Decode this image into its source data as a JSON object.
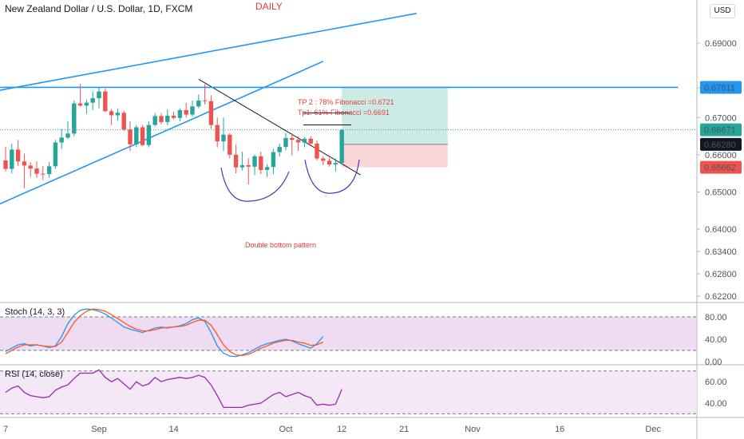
{
  "header": {
    "title": "New Zealand Dollar / U.S. Dollar, 1D, FXCM",
    "timeframe_label": "DAILY",
    "currency_button": "USD"
  },
  "annotations": {
    "tp2": "TP 2 : 78% Fibonacci =0.6721",
    "tp1": "Tp1: 61% Fibonacci =0.6691",
    "pattern": "Double bottom pattern"
  },
  "colors": {
    "up": "#26a69a",
    "down": "#ef5350",
    "trendline": "#2196f3",
    "arc": "#3f3fbf",
    "stoch_k": "#2196f3",
    "stoch_d": "#ff5722",
    "rsi": "#9c27b0",
    "accent_red": "#e53935"
  },
  "chart_data": [
    {
      "type": "candlestick",
      "title": "New Zealand Dollar / U.S. Dollar, 1D, FXCM",
      "y_ticks": [
        0.622,
        0.628,
        0.634,
        0.64,
        0.65,
        0.66,
        0.67,
        0.678,
        0.69
      ],
      "y_tick_labels": [
        "0.62200",
        "0.62800",
        "0.63400",
        "0.64000",
        "0.65000",
        "0.66000",
        "0.67000",
        "0.67811",
        "0.69000"
      ],
      "x_ticks": [
        {
          "bar": 0,
          "label": "7"
        },
        {
          "bar": 15,
          "label": "Sep"
        },
        {
          "bar": 27,
          "label": "14"
        },
        {
          "bar": 45,
          "label": "Oct"
        },
        {
          "bar": 54,
          "label": "12"
        },
        {
          "bar": 64,
          "label": "21"
        },
        {
          "bar": 75,
          "label": "Nov"
        },
        {
          "bar": 89,
          "label": "16"
        },
        {
          "bar": 104,
          "label": "Dec"
        }
      ],
      "price_labels": [
        {
          "value": "0.67811",
          "bg": "#2196f3"
        },
        {
          "value": "0.66671",
          "bg": "#26a69a"
        },
        {
          "value": "0.66280",
          "bg": "#131722"
        },
        {
          "value": "0.65662",
          "bg": "#ef5350"
        }
      ],
      "ohlc": [
        [
          0.6585,
          0.6621,
          0.6555,
          0.6562
        ],
        [
          0.6562,
          0.663,
          0.655,
          0.6614
        ],
        [
          0.6614,
          0.664,
          0.657,
          0.6582
        ],
        [
          0.6582,
          0.6603,
          0.651,
          0.6571
        ],
        [
          0.6571,
          0.658,
          0.654,
          0.6563
        ],
        [
          0.6563,
          0.6582,
          0.6538,
          0.6549
        ],
        [
          0.6549,
          0.657,
          0.6532,
          0.6548
        ],
        [
          0.6548,
          0.658,
          0.6538,
          0.6569
        ],
        [
          0.6569,
          0.664,
          0.6562,
          0.6633
        ],
        [
          0.6633,
          0.667,
          0.6615,
          0.6646
        ],
        [
          0.6646,
          0.669,
          0.6642,
          0.6657
        ],
        [
          0.6657,
          0.6746,
          0.665,
          0.6738
        ],
        [
          0.6738,
          0.679,
          0.673,
          0.6732
        ],
        [
          0.6732,
          0.6748,
          0.671,
          0.674
        ],
        [
          0.674,
          0.677,
          0.672,
          0.6752
        ],
        [
          0.6752,
          0.678,
          0.6725,
          0.677
        ],
        [
          0.677,
          0.6778,
          0.6715,
          0.6717
        ],
        [
          0.6717,
          0.6723,
          0.668,
          0.6706
        ],
        [
          0.6706,
          0.6725,
          0.6692,
          0.6713
        ],
        [
          0.6713,
          0.6718,
          0.6663,
          0.6668
        ],
        [
          0.6668,
          0.669,
          0.661,
          0.6628
        ],
        [
          0.6628,
          0.668,
          0.662,
          0.6674
        ],
        [
          0.6674,
          0.668,
          0.6623,
          0.6626
        ],
        [
          0.6626,
          0.669,
          0.662,
          0.668
        ],
        [
          0.668,
          0.6712,
          0.6676,
          0.6704
        ],
        [
          0.6704,
          0.6712,
          0.6682,
          0.6688
        ],
        [
          0.6688,
          0.6722,
          0.668,
          0.6705
        ],
        [
          0.6705,
          0.6715,
          0.6695,
          0.6699
        ],
        [
          0.6699,
          0.6725,
          0.669,
          0.672
        ],
        [
          0.672,
          0.674,
          0.67,
          0.6708
        ],
        [
          0.6708,
          0.6746,
          0.6702,
          0.673
        ],
        [
          0.673,
          0.6762,
          0.6725,
          0.6746
        ],
        [
          0.6746,
          0.679,
          0.6735,
          0.6744
        ],
        [
          0.6744,
          0.676,
          0.667,
          0.668
        ],
        [
          0.668,
          0.67,
          0.662,
          0.6636
        ],
        [
          0.6636,
          0.67,
          0.661,
          0.6654
        ],
        [
          0.6654,
          0.6658,
          0.659,
          0.66
        ],
        [
          0.66,
          0.6628,
          0.655,
          0.6566
        ],
        [
          0.6566,
          0.6608,
          0.6558,
          0.6572
        ],
        [
          0.6572,
          0.659,
          0.652,
          0.6568
        ],
        [
          0.6568,
          0.66,
          0.6545,
          0.6596
        ],
        [
          0.6596,
          0.6608,
          0.6548,
          0.6559
        ],
        [
          0.6559,
          0.6575,
          0.654,
          0.6567
        ],
        [
          0.6567,
          0.6616,
          0.6548,
          0.6607
        ],
        [
          0.6607,
          0.663,
          0.6595,
          0.6621
        ],
        [
          0.6621,
          0.6658,
          0.6612,
          0.6645
        ],
        [
          0.6645,
          0.6658,
          0.6598,
          0.664
        ],
        [
          0.664,
          0.665,
          0.661,
          0.6633
        ],
        [
          0.6633,
          0.6648,
          0.662,
          0.6643
        ],
        [
          0.6643,
          0.665,
          0.6628,
          0.663
        ],
        [
          0.663,
          0.6638,
          0.6585,
          0.659
        ],
        [
          0.659,
          0.6596,
          0.6572,
          0.6584
        ],
        [
          0.6584,
          0.6592,
          0.6568,
          0.6574
        ],
        [
          0.6574,
          0.659,
          0.6555,
          0.6578
        ],
        [
          0.6578,
          0.6668,
          0.6574,
          0.6667
        ]
      ],
      "trendlines": [
        {
          "name": "upper channel",
          "from": [
            -2,
            0.677
          ],
          "to": [
            66,
            0.698
          ]
        },
        {
          "name": "rising support",
          "from": [
            -2,
            0.646
          ],
          "to": [
            51,
            0.6851
          ]
        },
        {
          "name": "descending resistance",
          "from": [
            31,
            0.6803
          ],
          "to": [
            57,
            0.6546
          ]
        },
        {
          "name": "horizontal level",
          "from": [
            -2,
            0.67811
          ],
          "to": [
            108,
            0.67811
          ]
        }
      ],
      "targets": {
        "entry": 0.6628,
        "stop": 0.65662,
        "tp2": 0.6721,
        "tp1": 0.6691
      },
      "position_box": {
        "from_bar": 54,
        "to_bar": 71,
        "top": 0.67811,
        "entry": 0.6628,
        "bottom": 0.65662
      }
    },
    {
      "type": "line",
      "title": "Stoch (14, 3, 3)",
      "y_ticks": [
        0,
        40,
        80
      ],
      "y_tick_labels": [
        "0.00",
        "40.00",
        "80.00"
      ],
      "bands": [
        20,
        80
      ],
      "series": [
        {
          "name": "%K",
          "values": [
            18,
            24,
            30,
            32,
            28,
            30,
            28,
            25,
            28,
            45,
            68,
            83,
            92,
            94,
            93,
            90,
            85,
            78,
            70,
            62,
            58,
            55,
            52,
            56,
            60,
            62,
            60,
            62,
            64,
            68,
            75,
            78,
            72,
            52,
            28,
            15,
            10,
            9,
            12,
            16,
            22,
            28,
            32,
            35,
            38,
            40,
            37,
            32,
            28,
            24,
            32,
            45
          ]
        },
        {
          "name": "%D",
          "values": [
            14,
            20,
            26,
            30,
            30,
            30,
            28,
            27,
            27,
            35,
            52,
            70,
            82,
            90,
            94,
            93,
            90,
            84,
            77,
            70,
            63,
            58,
            55,
            55,
            57,
            60,
            61,
            62,
            63,
            65,
            70,
            74,
            74,
            65,
            48,
            30,
            18,
            12,
            11,
            13,
            18,
            24,
            28,
            33,
            36,
            38,
            38,
            35,
            33,
            29,
            30,
            35
          ]
        }
      ]
    },
    {
      "type": "line",
      "title": "RSI (14, close)",
      "y_ticks": [
        40,
        60
      ],
      "y_tick_labels": [
        "40.00",
        "60.00"
      ],
      "bands": [
        30,
        70
      ],
      "series": [
        {
          "name": "RSI",
          "values": [
            50,
            54,
            56,
            50,
            47,
            46,
            45,
            46,
            52,
            55,
            57,
            63,
            68,
            68,
            68,
            71,
            64,
            60,
            63,
            58,
            53,
            60,
            56,
            58,
            64,
            60,
            62,
            63,
            64,
            63,
            64,
            66,
            64,
            57,
            47,
            36,
            36,
            36,
            36,
            38,
            39,
            40,
            44,
            48,
            50,
            46,
            48,
            50,
            47,
            45,
            38,
            39,
            38,
            39,
            53
          ]
        }
      ]
    }
  ]
}
